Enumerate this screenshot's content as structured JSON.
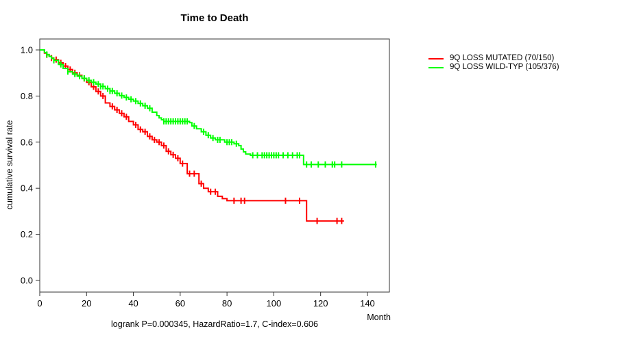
{
  "title": "Time to Death",
  "ylabel": "cumulative survival rate",
  "xlabel": "Month",
  "footnote": "logrank P=0.000345, HazardRatio=1.7, C-index=0.606",
  "colors": {
    "mutated": "#ff0000",
    "wildtype": "#00ff00",
    "axis": "#333333"
  },
  "legend": [
    {
      "label": "9Q LOSS MUTATED (70/150)",
      "color": "#ff0000"
    },
    {
      "label": "9Q LOSS WILD-TYP (105/376)",
      "color": "#00ff00"
    }
  ],
  "chart_data": {
    "type": "line",
    "subtype": "kaplan-meier-step",
    "title": "Time to Death",
    "xlabel": "Month",
    "ylabel": "cumulative survival rate",
    "xlim": [
      0,
      150
    ],
    "ylim": [
      0.0,
      1.0
    ],
    "x_ticks": [
      0,
      20,
      40,
      60,
      80,
      100,
      120,
      140
    ],
    "y_ticks": [
      "0.0",
      "0.2",
      "0.4",
      "0.6",
      "0.8",
      "1.0"
    ],
    "grid": false,
    "legend_position": "right-outside",
    "annotation": "logrank P=0.000345, HazardRatio=1.7, C-index=0.606",
    "series": [
      {
        "name": "9Q LOSS MUTATED (70/150)",
        "color": "#ff0000",
        "events_total": "70/150",
        "steps": [
          [
            0,
            1.0
          ],
          [
            2,
            0.986
          ],
          [
            3,
            0.979
          ],
          [
            4,
            0.972
          ],
          [
            5,
            0.965
          ],
          [
            6,
            0.958
          ],
          [
            8,
            0.944
          ],
          [
            10,
            0.93
          ],
          [
            12,
            0.915
          ],
          [
            14,
            0.901
          ],
          [
            16,
            0.89
          ],
          [
            18,
            0.876
          ],
          [
            20,
            0.86
          ],
          [
            22,
            0.84
          ],
          [
            24,
            0.82
          ],
          [
            26,
            0.8
          ],
          [
            28,
            0.77
          ],
          [
            30,
            0.755
          ],
          [
            32,
            0.74
          ],
          [
            34,
            0.725
          ],
          [
            36,
            0.71
          ],
          [
            38,
            0.69
          ],
          [
            40,
            0.675
          ],
          [
            42,
            0.655
          ],
          [
            44,
            0.645
          ],
          [
            46,
            0.625
          ],
          [
            48,
            0.61
          ],
          [
            50,
            0.6
          ],
          [
            52,
            0.585
          ],
          [
            54,
            0.56
          ],
          [
            56,
            0.545
          ],
          [
            58,
            0.53
          ],
          [
            60,
            0.507
          ],
          [
            63,
            0.463
          ],
          [
            68,
            0.42
          ],
          [
            70,
            0.4
          ],
          [
            72,
            0.385
          ],
          [
            76,
            0.365
          ],
          [
            78,
            0.355
          ],
          [
            80,
            0.346
          ],
          [
            114,
            0.258
          ],
          [
            130,
            0.258
          ]
        ],
        "censor_months": [
          3,
          5,
          7,
          9,
          11,
          13,
          15,
          17,
          19,
          21,
          23,
          25,
          27,
          31,
          33,
          35,
          37,
          41,
          43,
          45,
          47,
          49,
          51,
          53,
          55,
          57,
          59,
          61,
          64,
          66,
          69,
          73,
          75,
          83,
          86,
          87.5,
          105,
          111,
          118.5,
          127,
          129
        ]
      },
      {
        "name": "9Q LOSS WILD-TYP (105/376)",
        "color": "#00ff00",
        "events_total": "105/376",
        "steps": [
          [
            0,
            1.0
          ],
          [
            2,
            0.988
          ],
          [
            3,
            0.98
          ],
          [
            4,
            0.972
          ],
          [
            5,
            0.963
          ],
          [
            6,
            0.955
          ],
          [
            8,
            0.937
          ],
          [
            10,
            0.92
          ],
          [
            12,
            0.906
          ],
          [
            14,
            0.895
          ],
          [
            16,
            0.886
          ],
          [
            18,
            0.877
          ],
          [
            20,
            0.868
          ],
          [
            22,
            0.86
          ],
          [
            24,
            0.852
          ],
          [
            26,
            0.842
          ],
          [
            28,
            0.832
          ],
          [
            30,
            0.822
          ],
          [
            32,
            0.812
          ],
          [
            34,
            0.802
          ],
          [
            36,
            0.794
          ],
          [
            38,
            0.786
          ],
          [
            40,
            0.778
          ],
          [
            42,
            0.768
          ],
          [
            44,
            0.758
          ],
          [
            46,
            0.747
          ],
          [
            48,
            0.73
          ],
          [
            50,
            0.715
          ],
          [
            51,
            0.705
          ],
          [
            52,
            0.697
          ],
          [
            53,
            0.69
          ],
          [
            64,
            0.685
          ],
          [
            65,
            0.67
          ],
          [
            67,
            0.658
          ],
          [
            69,
            0.645
          ],
          [
            71,
            0.63
          ],
          [
            73,
            0.618
          ],
          [
            75,
            0.61
          ],
          [
            79,
            0.6
          ],
          [
            83,
            0.593
          ],
          [
            85,
            0.585
          ],
          [
            86,
            0.57
          ],
          [
            87,
            0.558
          ],
          [
            88,
            0.548
          ],
          [
            90,
            0.543
          ],
          [
            112.7,
            0.503
          ],
          [
            144,
            0.503
          ]
        ],
        "censor_months": [
          3,
          6,
          9,
          12,
          15,
          17,
          19,
          21,
          23,
          25,
          26,
          27,
          29,
          30,
          31,
          33,
          35,
          37,
          39,
          41,
          43,
          45,
          47,
          53,
          54,
          55,
          56,
          57,
          58,
          59,
          60,
          61,
          62,
          63,
          66,
          70,
          72,
          74,
          76,
          77,
          80,
          81,
          82,
          84,
          91,
          93,
          95,
          96,
          97,
          98,
          99,
          100,
          101,
          102,
          104,
          106,
          108,
          110,
          111,
          114,
          116,
          119,
          122,
          125,
          126,
          129,
          143.5
        ]
      }
    ]
  }
}
